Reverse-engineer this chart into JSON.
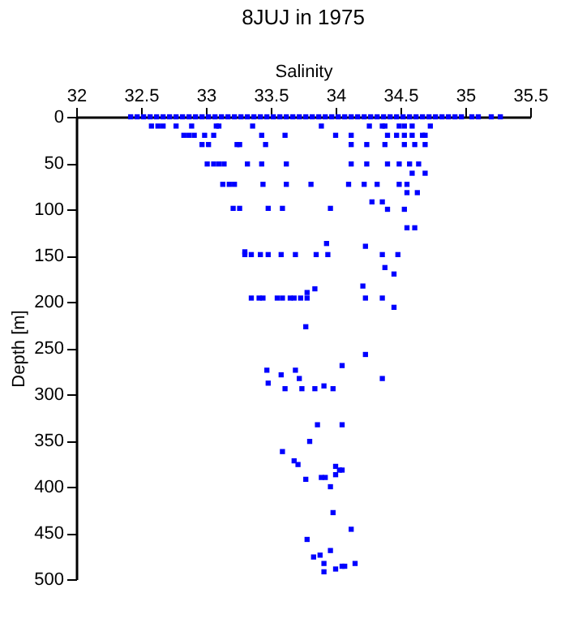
{
  "chart_data": {
    "type": "scatter",
    "title": "8JUJ in 1975",
    "xlabel": "Salinity",
    "ylabel": "Depth [m]",
    "xlim": [
      32,
      35.5
    ],
    "xticks": [
      32,
      32.5,
      33,
      33.5,
      34,
      34.5,
      35,
      35.5
    ],
    "ylim": [
      500,
      0
    ],
    "yticks": [
      0,
      50,
      100,
      150,
      200,
      250,
      300,
      350,
      400,
      450,
      500
    ],
    "grid": false,
    "marker": "square",
    "series": [
      {
        "color": "#0000ff",
        "x": [
          32.42,
          32.47,
          32.52,
          32.57,
          32.62,
          32.67,
          32.72,
          32.77,
          32.82,
          32.87,
          32.92,
          32.97,
          33.02,
          33.07,
          33.12,
          33.17,
          33.22,
          33.27,
          33.32,
          33.37,
          33.42,
          33.47,
          33.52,
          33.57,
          33.62,
          33.67,
          33.72,
          33.77,
          33.82,
          33.87,
          33.92,
          33.97,
          34.02,
          34.07,
          34.12,
          34.17,
          34.22,
          34.27,
          34.32,
          34.37,
          34.42,
          34.47,
          34.52,
          34.57,
          34.62,
          34.67,
          34.72,
          34.77,
          34.82,
          34.87,
          34.92,
          34.97,
          35.05,
          35.1,
          35.2,
          35.27,
          32.58,
          32.63,
          32.67,
          32.77,
          32.89,
          33.08,
          33.1,
          33.36,
          33.89,
          34.26,
          34.36,
          34.38,
          34.49,
          34.53,
          34.59,
          34.73,
          32.83,
          32.87,
          32.91,
          32.99,
          33.06,
          33.43,
          33.61,
          34.0,
          34.12,
          34.4,
          34.47,
          34.53,
          34.59,
          34.67,
          34.69,
          32.97,
          33.02,
          33.24,
          33.26,
          33.46,
          34.12,
          34.24,
          34.38,
          34.53,
          34.61,
          34.69,
          33.01,
          33.06,
          33.1,
          33.14,
          33.32,
          33.43,
          33.62,
          34.12,
          34.24,
          34.4,
          34.49,
          34.57,
          34.64,
          34.59,
          34.69,
          33.13,
          33.18,
          33.22,
          33.44,
          33.62,
          33.81,
          34.1,
          34.22,
          34.32,
          34.49,
          34.55,
          34.55,
          34.63,
          33.21,
          33.26,
          33.48,
          33.59,
          33.96,
          34.28,
          34.36,
          34.4,
          34.53,
          34.55,
          34.61,
          33.93,
          34.23,
          33.3,
          33.3,
          33.35,
          33.42,
          33.48,
          33.58,
          33.69,
          33.85,
          33.94,
          34.36,
          34.48,
          34.38,
          34.45,
          34.21,
          33.78,
          33.84,
          33.35,
          33.41,
          33.44,
          33.55,
          33.59,
          33.65,
          33.68,
          33.73,
          33.78,
          34.23,
          34.36,
          34.45,
          33.77,
          34.23,
          34.05,
          33.47,
          33.69,
          33.58,
          33.72,
          34.36,
          33.48,
          33.91,
          33.61,
          33.74,
          33.84,
          33.98,
          33.86,
          34.05,
          33.8,
          33.59,
          33.68,
          33.71,
          34.0,
          34.03,
          34.05,
          33.89,
          33.92,
          34.0,
          33.77,
          33.96,
          33.98,
          34.12,
          33.78,
          33.96,
          33.88,
          33.83,
          33.91,
          34.15,
          34.05,
          34.07,
          34.0,
          33.91
        ],
        "values": [
          0,
          0,
          0,
          0,
          0,
          0,
          0,
          0,
          0,
          0,
          0,
          0,
          0,
          0,
          0,
          0,
          0,
          0,
          0,
          0,
          0,
          0,
          0,
          0,
          0,
          0,
          0,
          0,
          0,
          0,
          0,
          0,
          0,
          0,
          0,
          0,
          0,
          0,
          0,
          0,
          0,
          0,
          0,
          0,
          0,
          0,
          0,
          0,
          0,
          0,
          0,
          0,
          0,
          0,
          0,
          0,
          10,
          10,
          10,
          10,
          10,
          10,
          10,
          10,
          10,
          10,
          10,
          10,
          10,
          10,
          10,
          10,
          20,
          20,
          20,
          20,
          20,
          20,
          20,
          20,
          20,
          20,
          20,
          20,
          20,
          20,
          20,
          30,
          30,
          30,
          30,
          30,
          30,
          30,
          30,
          30,
          30,
          30,
          51,
          51,
          51,
          51,
          51,
          51,
          51,
          51,
          51,
          51,
          51,
          51,
          51,
          61,
          61,
          73,
          73,
          73,
          73,
          73,
          73,
          73,
          73,
          73,
          73,
          73,
          82,
          82,
          99,
          99,
          99,
          99,
          99,
          92,
          92,
          100,
          100,
          120,
          120,
          137,
          140,
          146,
          149,
          149,
          149,
          149,
          149,
          149,
          149,
          149,
          149,
          149,
          163,
          170,
          183,
          190,
          186,
          196,
          196,
          196,
          196,
          196,
          196,
          196,
          196,
          196,
          196,
          196,
          206,
          227,
          257,
          269,
          274,
          274,
          279,
          283,
          283,
          288,
          291,
          294,
          294,
          294,
          294,
          333,
          333,
          351,
          362,
          372,
          376,
          378,
          382,
          382,
          390,
          390,
          387,
          392,
          400,
          428,
          446,
          457,
          469,
          474,
          476,
          483,
          483,
          486,
          486,
          489,
          492
        ]
      }
    ]
  }
}
